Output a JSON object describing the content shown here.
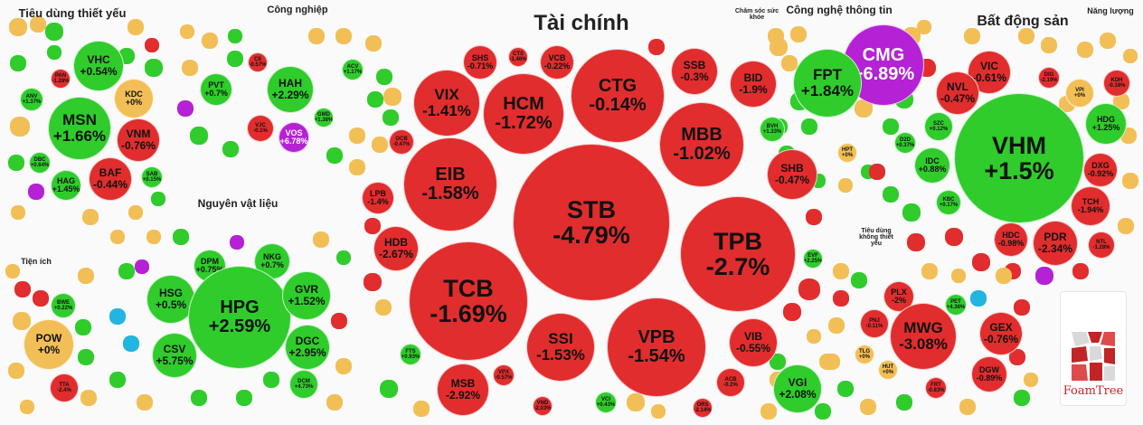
{
  "groups": [
    {
      "id": "tieu-dung-thiet-yeu",
      "title": "Tiêu dùng thiết yếu",
      "size": 13,
      "stocks": [
        {
          "ticker": "VHC",
          "change": "+0.54%",
          "state": "up"
        },
        {
          "ticker": "PAN",
          "change": "-1.28%",
          "state": "down"
        },
        {
          "ticker": "ANV",
          "change": "+1.37%",
          "state": "up"
        },
        {
          "ticker": "KDC",
          "change": "+0%",
          "state": "flat"
        },
        {
          "ticker": "MSN",
          "change": "+1.66%",
          "state": "up"
        },
        {
          "ticker": "VNM",
          "change": "-0.76%",
          "state": "down"
        },
        {
          "ticker": "DBC",
          "change": "+0.64%",
          "state": "up"
        },
        {
          "ticker": "BAF",
          "change": "-0.44%",
          "state": "down"
        },
        {
          "ticker": "SAB",
          "change": "+0.15%",
          "state": "up"
        },
        {
          "ticker": "HAG",
          "change": "+1.45%",
          "state": "up"
        }
      ]
    },
    {
      "id": "cong-nghiep",
      "title": "Công nghiệp",
      "size": 11,
      "stocks": [
        {
          "ticker": "CII",
          "change": "-0.57%",
          "state": "down"
        },
        {
          "ticker": "PVT",
          "change": "+0.7%",
          "state": "up"
        },
        {
          "ticker": "HAH",
          "change": "+2.29%",
          "state": "up"
        },
        {
          "ticker": "ACV",
          "change": "+1.17%",
          "state": "up"
        },
        {
          "ticker": "GMD",
          "change": "+1.38%",
          "state": "up"
        },
        {
          "ticker": "VJC",
          "change": "-0.1%",
          "state": "down"
        },
        {
          "ticker": "VOS",
          "change": "+6.78%",
          "state": "ceil"
        }
      ]
    },
    {
      "id": "tai-chinh",
      "title": "Tài chính",
      "size": 24,
      "stocks": [
        {
          "ticker": "SHS",
          "change": "-0.71%",
          "state": "down"
        },
        {
          "ticker": "CTS",
          "change": "-1.46%",
          "state": "down"
        },
        {
          "ticker": "VCB",
          "change": "-0.22%",
          "state": "down"
        },
        {
          "ticker": "SSB",
          "change": "-0.3%",
          "state": "down"
        },
        {
          "ticker": "VIX",
          "change": "-1.41%",
          "state": "down"
        },
        {
          "ticker": "HCM",
          "change": "-1.72%",
          "state": "down"
        },
        {
          "ticker": "CTG",
          "change": "-0.14%",
          "state": "down"
        },
        {
          "ticker": "BID",
          "change": "-1.9%",
          "state": "down"
        },
        {
          "ticker": "MBB",
          "change": "-1.02%",
          "state": "down"
        },
        {
          "ticker": "BVH",
          "change": "+1.33%",
          "state": "up"
        },
        {
          "ticker": "OCB",
          "change": "-0.47%",
          "state": "down"
        },
        {
          "ticker": "EIB",
          "change": "-1.58%",
          "state": "down"
        },
        {
          "ticker": "STB",
          "change": "-4.79%",
          "state": "down"
        },
        {
          "ticker": "SHB",
          "change": "-0.47%",
          "state": "down"
        },
        {
          "ticker": "LPB",
          "change": "-1.4%",
          "state": "down"
        },
        {
          "ticker": "TPB",
          "change": "-2.7%",
          "state": "down"
        },
        {
          "ticker": "HDB",
          "change": "-2.67%",
          "state": "down"
        },
        {
          "ticker": "EVF",
          "change": "+2.25%",
          "state": "up"
        },
        {
          "ticker": "TCB",
          "change": "-1.69%",
          "state": "down"
        },
        {
          "ticker": "SSI",
          "change": "-1.53%",
          "state": "down"
        },
        {
          "ticker": "VPB",
          "change": "-1.54%",
          "state": "down"
        },
        {
          "ticker": "VIB",
          "change": "-0.55%",
          "state": "down"
        },
        {
          "ticker": "FTS",
          "change": "+0.93%",
          "state": "up"
        },
        {
          "ticker": "MSB",
          "change": "-2.92%",
          "state": "down"
        },
        {
          "ticker": "VPX",
          "change": "-0.57%",
          "state": "down"
        },
        {
          "ticker": "ACB",
          "change": "-0.2%",
          "state": "down"
        },
        {
          "ticker": "VND",
          "change": "-2.03%",
          "state": "down"
        },
        {
          "ticker": "VCI",
          "change": "+0.43%",
          "state": "up"
        },
        {
          "ticker": "ORS",
          "change": "-2.14%",
          "state": "down"
        }
      ]
    },
    {
      "id": "cham-soc-suc-khoe",
      "title": "Chăm sóc sức khỏe",
      "size": 7,
      "stocks": []
    },
    {
      "id": "cong-nghe-thong-tin",
      "title": "Công nghệ thông tin",
      "size": 12,
      "stocks": [
        {
          "ticker": "CMG",
          "change": "+6.89%",
          "state": "ceil"
        },
        {
          "ticker": "FPT",
          "change": "+1.84%",
          "state": "up"
        },
        {
          "ticker": "HPT",
          "change": "+0%",
          "state": "flat"
        }
      ]
    },
    {
      "id": "bat-dong-san",
      "title": "Bất động sản",
      "size": 16,
      "stocks": [
        {
          "ticker": "VIC",
          "change": "-0.61%",
          "state": "down"
        },
        {
          "ticker": "DIG",
          "change": "-2.19%",
          "state": "down"
        },
        {
          "ticker": "KDH",
          "change": "-0.16%",
          "state": "down"
        },
        {
          "ticker": "NVL",
          "change": "-0.47%",
          "state": "down"
        },
        {
          "ticker": "VPI",
          "change": "+0%",
          "state": "flat"
        },
        {
          "ticker": "SZC",
          "change": "+0.12%",
          "state": "up"
        },
        {
          "ticker": "HDG",
          "change": "+1.25%",
          "state": "up"
        },
        {
          "ticker": "D2D",
          "change": "+0.37%",
          "state": "up"
        },
        {
          "ticker": "IDC",
          "change": "+0.88%",
          "state": "up"
        },
        {
          "ticker": "VHM",
          "change": "+1.5%",
          "state": "up"
        },
        {
          "ticker": "DXG",
          "change": "-0.92%",
          "state": "down"
        },
        {
          "ticker": "KBC",
          "change": "+0.17%",
          "state": "up"
        },
        {
          "ticker": "TCH",
          "change": "-1.94%",
          "state": "down"
        },
        {
          "ticker": "HDC",
          "change": "-0.98%",
          "state": "down"
        },
        {
          "ticker": "PDR",
          "change": "-2.34%",
          "state": "down"
        },
        {
          "ticker": "NTL",
          "change": "-1.28%",
          "state": "down"
        }
      ]
    },
    {
      "id": "nang-luong",
      "title": "Năng lượng",
      "size": 9,
      "stocks": []
    },
    {
      "id": "tien-ich",
      "title": "Tiện ích",
      "size": 9,
      "stocks": [
        {
          "ticker": "BWE",
          "change": "+0.22%",
          "state": "up"
        },
        {
          "ticker": "POW",
          "change": "+0%",
          "state": "flat"
        },
        {
          "ticker": "TTA",
          "change": "-2.4%",
          "state": "down"
        }
      ]
    },
    {
      "id": "nguyen-vat-lieu",
      "title": "Nguyên vật liệu",
      "size": 12,
      "stocks": [
        {
          "ticker": "DPM",
          "change": "+0.75%",
          "state": "up"
        },
        {
          "ticker": "NKG",
          "change": "+0.7%",
          "state": "up"
        },
        {
          "ticker": "HSG",
          "change": "+0.5%",
          "state": "up"
        },
        {
          "ticker": "HPG",
          "change": "+2.59%",
          "state": "up"
        },
        {
          "ticker": "GVR",
          "change": "+1.52%",
          "state": "up"
        },
        {
          "ticker": "CSV",
          "change": "+5.75%",
          "state": "up"
        },
        {
          "ticker": "DGC",
          "change": "+2.95%",
          "state": "up"
        },
        {
          "ticker": "DCM",
          "change": "+4.73%",
          "state": "up"
        }
      ]
    },
    {
      "id": "tieu-dung-khong-thiet-yeu",
      "title": "Tiêu dùng không thiết yếu",
      "size": 7,
      "stocks": [
        {
          "ticker": "PLX",
          "change": "-2%",
          "state": "down"
        },
        {
          "ticker": "PET",
          "change": "+4.36%",
          "state": "up"
        },
        {
          "ticker": "PNJ",
          "change": "-0.11%",
          "state": "down"
        },
        {
          "ticker": "MWG",
          "change": "-3.08%",
          "state": "down"
        },
        {
          "ticker": "GEX",
          "change": "-0.76%",
          "state": "down"
        },
        {
          "ticker": "TLG",
          "change": "+0%",
          "state": "flat"
        },
        {
          "ticker": "HUT",
          "change": "+0%",
          "state": "flat"
        },
        {
          "ticker": "FRT",
          "change": "-0.83%",
          "state": "down"
        },
        {
          "ticker": "DGW",
          "change": "-0.89%",
          "state": "down"
        }
      ]
    },
    {
      "id": "vgi-group",
      "title": "",
      "size": 9,
      "stocks": [
        {
          "ticker": "VGI",
          "change": "+2.08%",
          "state": "up"
        }
      ]
    }
  ],
  "logo": {
    "text": "FoamTree",
    "colors": [
      "#c12525",
      "#e04a4a",
      "#f0f0f0"
    ]
  },
  "colors": {
    "up": "#2fcc2c",
    "down": "#e12d2d",
    "flat": "#f2bf57",
    "ceil": "#b521d4",
    "floor": "#21b5df"
  }
}
